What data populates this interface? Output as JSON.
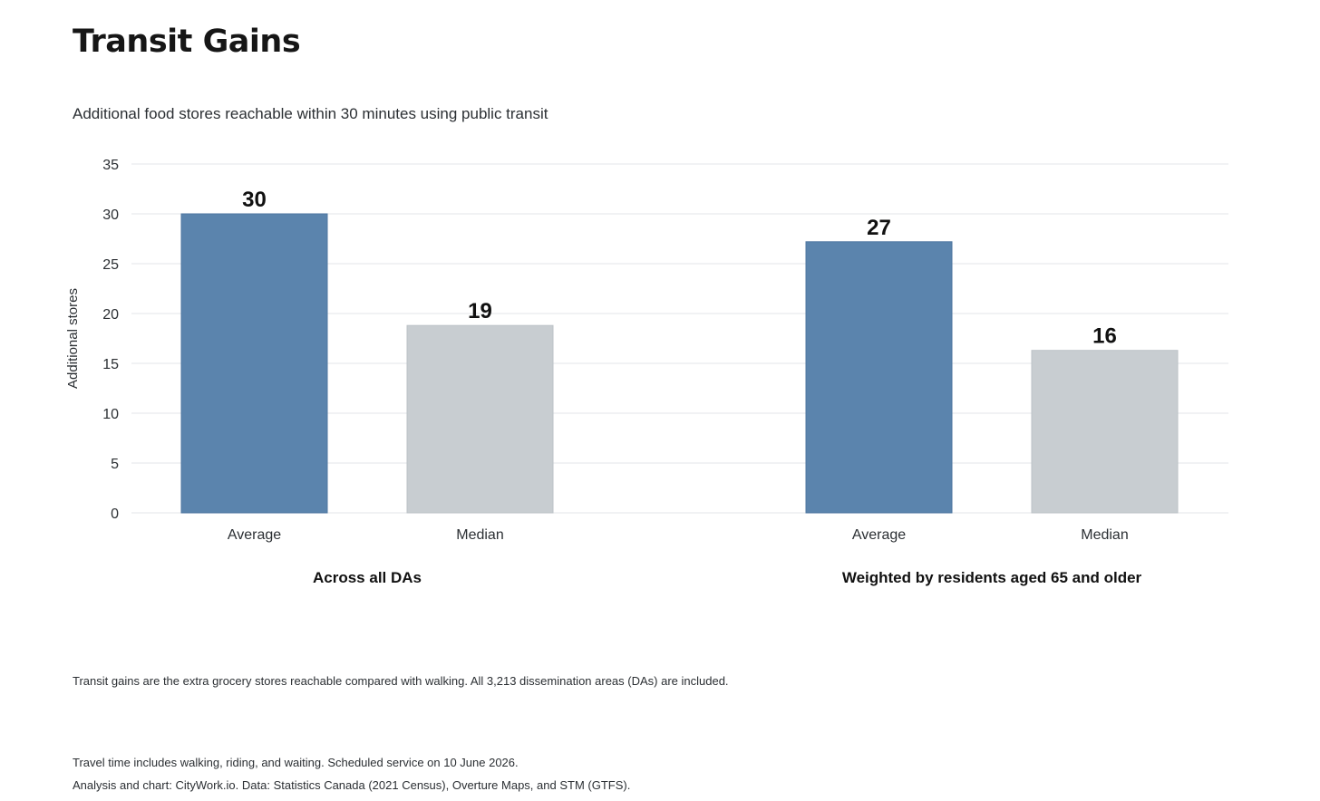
{
  "title": "Transit Gains",
  "subtitle": "Additional food stores reachable within 30 minutes using public transit",
  "colors": {
    "average": "#5b84ad",
    "median": "#c8cdd1",
    "grid": "#e3e6e8"
  },
  "chart_data": {
    "type": "bar",
    "ylabel": "Additional stores",
    "ylim": [
      0,
      35
    ],
    "yticks": [
      0,
      5,
      10,
      15,
      20,
      25,
      30,
      35
    ],
    "grid": true,
    "groups": [
      {
        "label": "Across all DAs",
        "bars": [
          {
            "category": "Average",
            "value": 30,
            "label": "30"
          },
          {
            "category": "Median",
            "value": 18.8,
            "label": "19"
          }
        ]
      },
      {
        "label": "Weighted by residents aged 65 and older",
        "bars": [
          {
            "category": "Average",
            "value": 27.2,
            "label": "27"
          },
          {
            "category": "Median",
            "value": 16.3,
            "label": "16"
          }
        ]
      }
    ]
  },
  "note": "Transit gains are the extra grocery stores reachable compared with walking. All 3,213 dissemination areas (DAs) are included.",
  "footer": {
    "line1": "Travel time includes walking, riding, and waiting. Scheduled service on 10 June 2026.",
    "line2": "Analysis and chart: CityWork.io. Data: Statistics Canada (2021 Census), Overture Maps, and STM (GTFS)."
  }
}
